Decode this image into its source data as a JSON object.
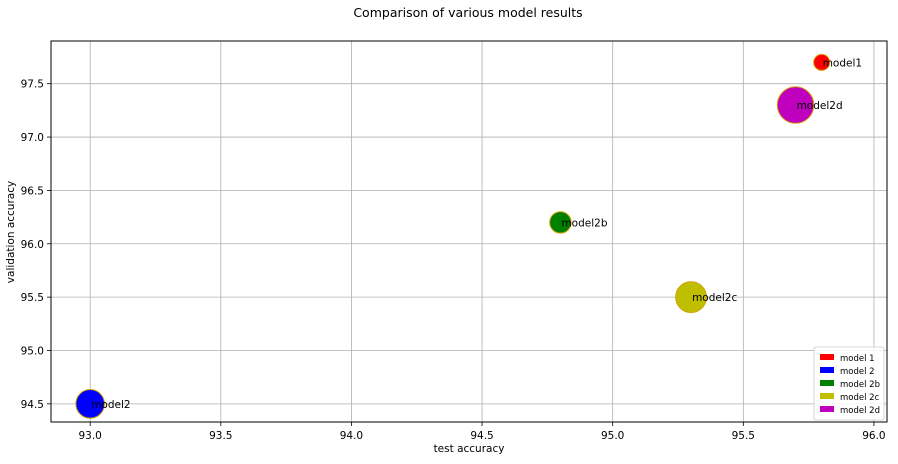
{
  "chart_data": {
    "type": "scatter",
    "title": "Comparison of various model results",
    "xlabel": "test accuracy",
    "ylabel": "validation accuracy",
    "xlim": [
      92.85,
      96.05
    ],
    "ylim": [
      94.33,
      97.9
    ],
    "xticks": [
      "93.0",
      "93.5",
      "94.0",
      "94.5",
      "95.0",
      "95.5",
      "96.0"
    ],
    "yticks": [
      "94.5",
      "95.0",
      "95.5",
      "96.0",
      "96.5",
      "97.0",
      "97.5"
    ],
    "grid": true,
    "legend_position": "bottom-right",
    "series": [
      {
        "name": "model 1",
        "label": "model1",
        "x": 95.8,
        "y": 97.7,
        "size": 1,
        "color": "#ff0000"
      },
      {
        "name": "model 2",
        "label": "model2",
        "x": 93.0,
        "y": 94.5,
        "size": 3.2,
        "color": "#0000ff"
      },
      {
        "name": "model 2b",
        "label": "model2b",
        "x": 94.8,
        "y": 96.2,
        "size": 1.8,
        "color": "#008000"
      },
      {
        "name": "model 2c",
        "label": "model2c",
        "x": 95.3,
        "y": 95.5,
        "size": 3.7,
        "color": "#bfbf00"
      },
      {
        "name": "model 2d",
        "label": "model2d",
        "x": 95.7,
        "y": 97.3,
        "size": 5.2,
        "color": "#bf00bf"
      }
    ]
  }
}
